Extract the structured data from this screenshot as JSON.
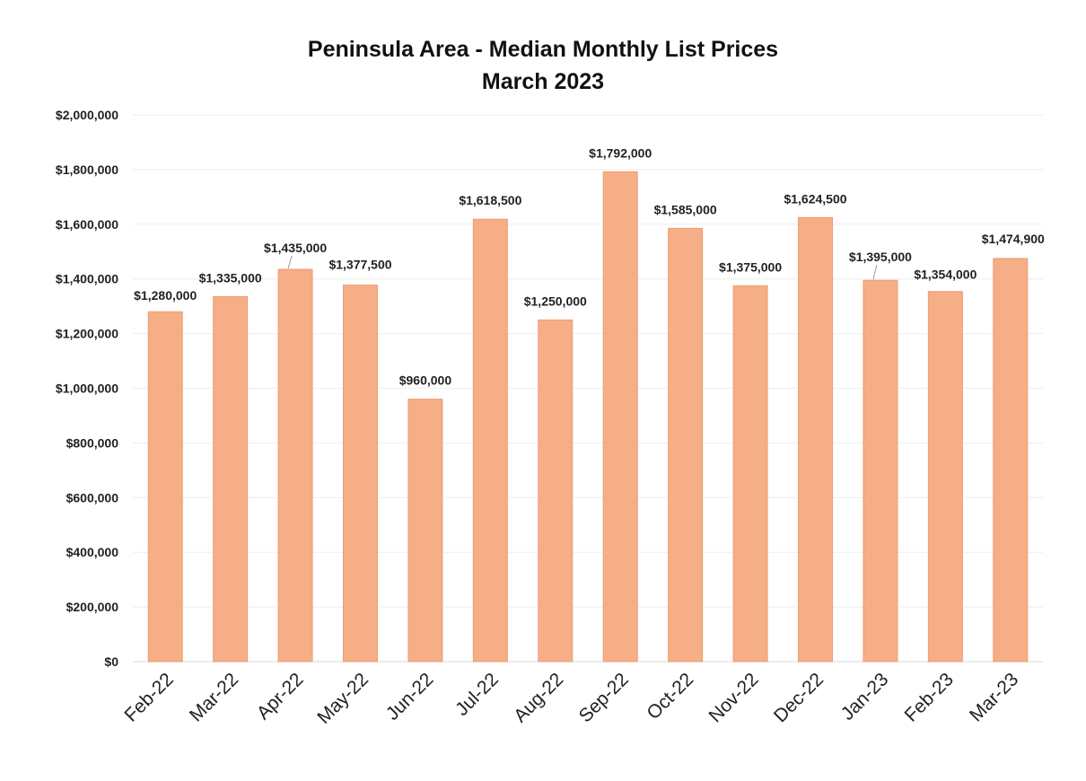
{
  "chart_data": {
    "type": "bar",
    "title": "Peninsula Area - Median Monthly List Prices",
    "subtitle": "March 2023",
    "xlabel": "",
    "ylabel": "",
    "ylim": [
      0,
      2000000
    ],
    "ytick_values": [
      0,
      200000,
      400000,
      600000,
      800000,
      1000000,
      1200000,
      1400000,
      1600000,
      1800000,
      2000000
    ],
    "ytick_labels": [
      "$0",
      "$200,000",
      "$400,000",
      "$600,000",
      "$800,000",
      "$1,000,000",
      "$1,200,000",
      "$1,400,000",
      "$1,600,000",
      "$1,800,000",
      "$2,000,000"
    ],
    "grid": true,
    "categories": [
      "Feb-22",
      "Mar-22",
      "Apr-22",
      "May-22",
      "Jun-22",
      "Jul-22",
      "Aug-22",
      "Sep-22",
      "Oct-22",
      "Nov-22",
      "Dec-22",
      "Jan-23",
      "Feb-23",
      "Mar-23"
    ],
    "values": [
      1280000,
      1335000,
      1435000,
      1377500,
      960000,
      1618500,
      1250000,
      1792000,
      1585000,
      1375000,
      1624500,
      1395000,
      1354000,
      1474900
    ],
    "data_labels": [
      "$1,280,000",
      "$1,335,000",
      "$1,435,000",
      "$1,377,500",
      "$960,000",
      "$1,618,500",
      "$1,250,000",
      "$1,792,000",
      "$1,585,000",
      "$1,375,000",
      "$1,624,500",
      "$1,395,000",
      "$1,354,000",
      "$1,474,900"
    ],
    "colors": {
      "bar": "#F5AE85",
      "bar_edge": "#EE9E72"
    }
  }
}
